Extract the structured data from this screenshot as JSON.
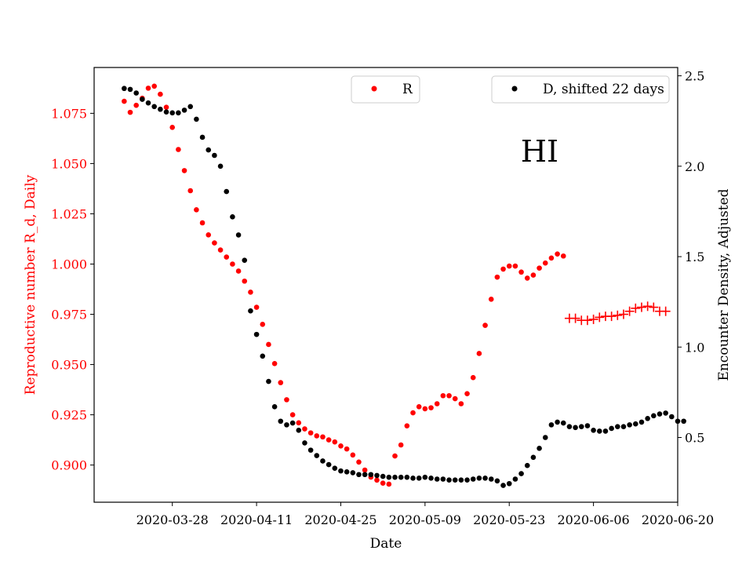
{
  "chart_data": {
    "type": "scatter",
    "annotation": "HI",
    "xlabel": "Date",
    "ylabel_left": "Reproductive number R_d, Daily",
    "ylabel_right": "Encounter Density, Adjusted",
    "x_start": "2020-03-20",
    "xlim": [
      "2020-03-15",
      "2020-06-20"
    ],
    "x_ticks": [
      "2020-03-28",
      "2020-04-11",
      "2020-04-25",
      "2020-05-09",
      "2020-05-23",
      "2020-06-06",
      "2020-06-20"
    ],
    "ylim_left": [
      0.8815,
      1.0978
    ],
    "ylim_right": [
      0.142,
      2.546
    ],
    "y_ticks_left": [
      "0.900",
      "0.925",
      "0.950",
      "0.975",
      "1.000",
      "1.025",
      "1.050",
      "1.075"
    ],
    "y_ticks_right": [
      "0.5",
      "1.0",
      "1.5",
      "2.0",
      "2.5"
    ],
    "colors": {
      "R": "#ff0000",
      "D": "#000000",
      "axes": "#000000"
    },
    "series": [
      {
        "name": "R",
        "axis": "left",
        "marker": "dot",
        "color": "#ff0000",
        "values": [
          1.081,
          1.0755,
          1.079,
          1.0825,
          1.0875,
          1.0885,
          1.0845,
          1.078,
          1.068,
          1.057,
          1.0465,
          1.0365,
          1.027,
          1.0205,
          1.0145,
          1.0105,
          1.007,
          1.0035,
          1.0,
          0.9965,
          0.9915,
          0.986,
          0.9785,
          0.97,
          0.96,
          0.9505,
          0.941,
          0.9325,
          0.925,
          0.921,
          0.918,
          0.916,
          0.9145,
          0.914,
          0.9125,
          0.9115,
          0.9095,
          0.908,
          0.905,
          0.9015,
          0.8975,
          0.894,
          0.8925,
          0.891,
          0.8905,
          0.9045,
          0.91,
          0.9195,
          0.926,
          0.929,
          0.928,
          0.9285,
          0.9305,
          0.9345,
          0.9345,
          0.933,
          0.9305,
          0.9355,
          0.9435,
          0.9555,
          0.9695,
          0.9825,
          0.9935,
          0.9975,
          0.999,
          0.999,
          0.996,
          0.993,
          0.9945,
          0.998,
          1.0005,
          1.003,
          1.005,
          1.004
        ]
      },
      {
        "name": "",
        "axis": "left",
        "marker": "plus",
        "color": "#ff0000",
        "start": "2020-06-02",
        "values": [
          0.973,
          0.973,
          0.972,
          0.972,
          0.9725,
          0.9735,
          0.974,
          0.974,
          0.9745,
          0.975,
          0.9765,
          0.978,
          0.9785,
          0.979,
          0.9785,
          0.9765,
          0.9765
        ]
      },
      {
        "name": "D, shifted 22 days",
        "axis": "right",
        "marker": "dot",
        "color": "#000000",
        "values": [
          2.43,
          2.425,
          2.405,
          2.37,
          2.35,
          2.33,
          2.315,
          2.3,
          2.295,
          2.295,
          2.31,
          2.33,
          2.26,
          2.16,
          2.09,
          2.06,
          2.0,
          1.86,
          1.72,
          1.62,
          1.48,
          1.2,
          1.07,
          0.95,
          0.81,
          0.67,
          0.59,
          0.57,
          0.58,
          0.54,
          0.47,
          0.43,
          0.4,
          0.37,
          0.35,
          0.33,
          0.315,
          0.31,
          0.305,
          0.295,
          0.295,
          0.295,
          0.29,
          0.285,
          0.28,
          0.28,
          0.28,
          0.28,
          0.275,
          0.275,
          0.28,
          0.275,
          0.27,
          0.27,
          0.265,
          0.265,
          0.265,
          0.265,
          0.27,
          0.275,
          0.275,
          0.27,
          0.26,
          0.235,
          0.245,
          0.27,
          0.3,
          0.345,
          0.39,
          0.44,
          0.5,
          0.57,
          0.585,
          0.58,
          0.56,
          0.555,
          0.56,
          0.565,
          0.54,
          0.535,
          0.535,
          0.55,
          0.56,
          0.56,
          0.57,
          0.575,
          0.585,
          0.605,
          0.62,
          0.63,
          0.635,
          0.615,
          0.59,
          0.59
        ]
      }
    ],
    "legends": [
      {
        "label": "R",
        "color": "#ff0000",
        "placement": "top-center"
      },
      {
        "label": "D, shifted 22 days",
        "color": "#000000",
        "placement": "top-right"
      }
    ],
    "grid": false
  }
}
